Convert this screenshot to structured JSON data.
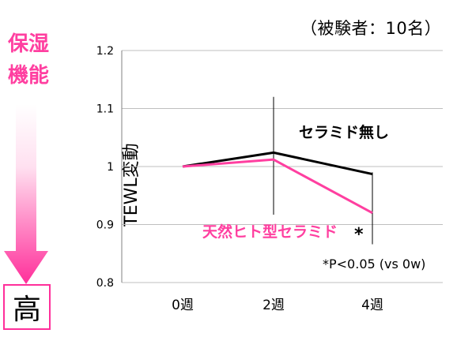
{
  "subject_note": "（被験者：10名）",
  "left_label": [
    "保湿",
    "機能"
  ],
  "high_label": "高",
  "colors": {
    "pink": "#ff3fa0",
    "black": "#000000",
    "grid": "#bfbfbf",
    "arrow_top": "#ffffff",
    "arrow_bottom": "#ff2f9a"
  },
  "chart_data": {
    "type": "line",
    "ylabel": "TEWL変動",
    "categories": [
      "0週",
      "2週",
      "4週"
    ],
    "ylim": [
      0.8,
      1.2
    ],
    "yticks": [
      "0.8",
      "0.9",
      "1",
      "1.1",
      "1.2"
    ],
    "grid": true,
    "series": [
      {
        "name": "セラミド無し",
        "color": "#000000",
        "values": [
          1.0,
          1.024,
          0.987
        ]
      },
      {
        "name": "天然ヒト型セラミド",
        "color": "#ff3fa0",
        "values": [
          1.0,
          1.012,
          0.92
        ]
      }
    ],
    "error_bars": [
      {
        "category": "2週",
        "low": 0.917,
        "high": 1.12
      },
      {
        "category": "4週",
        "low": 0.866,
        "high": 0.99
      }
    ],
    "annotations": {
      "significance_mark": "*",
      "footnote": "*P<0.05 (vs 0w)"
    }
  }
}
